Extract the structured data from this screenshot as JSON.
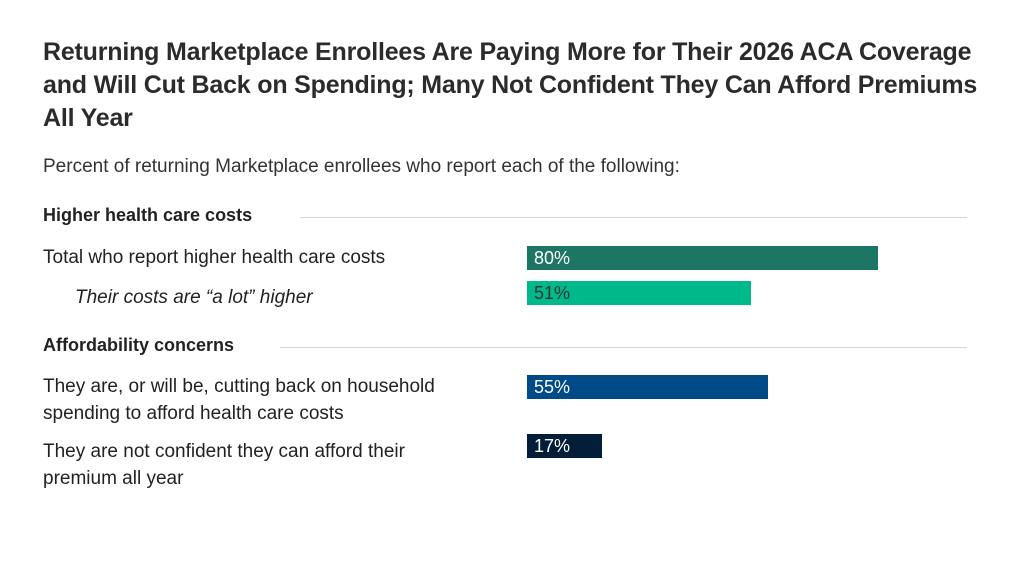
{
  "chart_data": {
    "type": "bar",
    "orientation": "horizontal",
    "title": "Returning Marketplace Enrollees Are Paying More for Their 2026 ACA Coverage and Will Cut Back on Spending; Many Not Confident They Can Afford Premiums All Year",
    "subtitle": "Percent of returning Marketplace enrollees who report each of the following:",
    "xlim": [
      0,
      100
    ],
    "grid": false,
    "sections": [
      {
        "name": "Higher health care costs"
      },
      {
        "name": "Affordability concerns"
      }
    ],
    "categories": [
      "Total who report higher health care costs",
      "Their costs are “a lot” higher",
      "They are, or will be, cutting back on household spending to afford health care costs",
      "They are not confident they can afford their premium all year"
    ],
    "values": [
      80,
      51,
      55,
      17
    ],
    "data_labels": [
      "80%",
      "51%",
      "55%",
      "17%"
    ],
    "colors": [
      "#1d7563",
      "#00b98a",
      "#004a87",
      "#021d38"
    ],
    "label_colors": [
      "#ffffff",
      "#333333",
      "#ffffff",
      "#ffffff"
    ]
  }
}
